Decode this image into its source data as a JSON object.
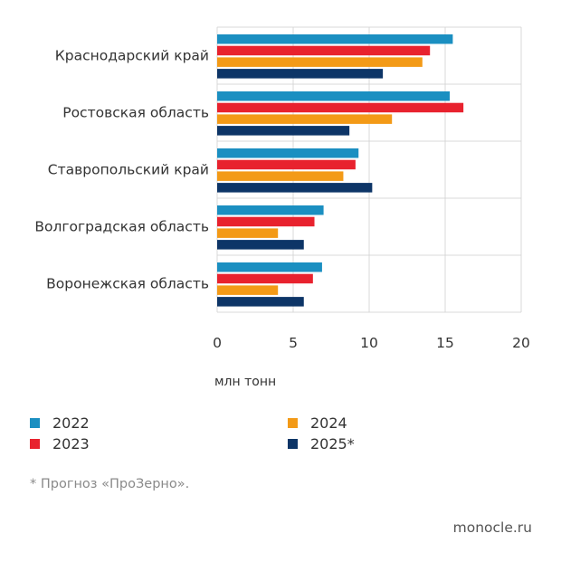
{
  "chart_data": {
    "type": "bar",
    "orientation": "horizontal",
    "categories": [
      "Краснодарский край",
      "Ростовская область",
      "Ставропольский край",
      "Волгоградская область",
      "Воронежская область"
    ],
    "series": [
      {
        "name": "2022",
        "color": "#1b8fc1",
        "values": [
          15.5,
          15.3,
          9.3,
          7.0,
          6.9
        ]
      },
      {
        "name": "2023",
        "color": "#e8222e",
        "values": [
          14.0,
          16.2,
          9.1,
          6.4,
          6.3
        ]
      },
      {
        "name": "2024",
        "color": "#f39a17",
        "values": [
          13.5,
          11.5,
          8.3,
          4.0,
          4.0
        ]
      },
      {
        "name": "2025*",
        "color": "#0d3567",
        "values": [
          10.9,
          8.7,
          10.2,
          5.7,
          5.7
        ]
      }
    ],
    "xlabel": "млн тонн",
    "xlim": [
      0,
      20
    ],
    "xticks": [
      0,
      5,
      10,
      15,
      20
    ],
    "grid": true,
    "legend_position": "bottom"
  },
  "footnote": "* Прогноз «ПроЗерно».",
  "source": "monocle.ru"
}
